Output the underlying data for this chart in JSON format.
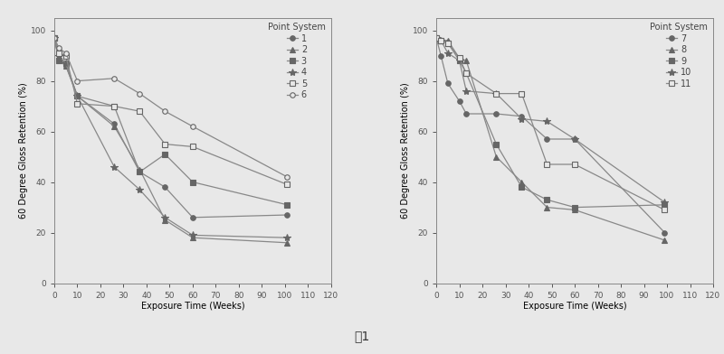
{
  "left_chart": {
    "title": "Point System",
    "series": [
      {
        "label": "1",
        "marker": "o",
        "markersize": 4,
        "fillstyle": "full",
        "x": [
          0,
          2,
          5,
          10,
          26,
          37,
          48,
          60,
          101
        ],
        "y": [
          97,
          88,
          86,
          74,
          63,
          44,
          38,
          26,
          27
        ]
      },
      {
        "label": "2",
        "marker": "^",
        "markersize": 4,
        "fillstyle": "full",
        "x": [
          0,
          2,
          5,
          10,
          26,
          37,
          48,
          60,
          101
        ],
        "y": [
          97,
          90,
          86,
          74,
          62,
          45,
          25,
          18,
          16
        ]
      },
      {
        "label": "3",
        "marker": "s",
        "markersize": 4,
        "fillstyle": "full",
        "x": [
          0,
          2,
          5,
          10,
          26,
          37,
          48,
          60,
          101
        ],
        "y": [
          97,
          88,
          87,
          74,
          70,
          44,
          51,
          40,
          31
        ]
      },
      {
        "label": "4",
        "marker": "*",
        "markersize": 6,
        "fillstyle": "full",
        "x": [
          0,
          2,
          5,
          10,
          26,
          37,
          48,
          60,
          101
        ],
        "y": [
          97,
          90,
          87,
          74,
          46,
          37,
          26,
          19,
          18
        ]
      },
      {
        "label": "5",
        "marker": "s",
        "markersize": 4,
        "fillstyle": "none",
        "x": [
          0,
          2,
          5,
          10,
          26,
          37,
          48,
          60,
          101
        ],
        "y": [
          97,
          91,
          90,
          71,
          70,
          68,
          55,
          54,
          39
        ]
      },
      {
        "label": "6",
        "marker": "o",
        "markersize": 4,
        "fillstyle": "none",
        "x": [
          0,
          2,
          5,
          10,
          26,
          37,
          48,
          60,
          101
        ],
        "y": [
          97,
          93,
          91,
          80,
          81,
          75,
          68,
          62,
          42
        ]
      }
    ],
    "xlabel": "Exposure Time (Weeks)",
    "ylabel": "60 Degree Gloss Retention (%)",
    "xlim": [
      0,
      120
    ],
    "ylim": [
      0,
      105
    ],
    "xticks": [
      0,
      10,
      20,
      30,
      40,
      50,
      60,
      70,
      80,
      90,
      100,
      110,
      120
    ],
    "yticks": [
      0,
      20,
      40,
      60,
      80,
      100
    ]
  },
  "right_chart": {
    "title": "Point System",
    "series": [
      {
        "label": "7",
        "marker": "o",
        "markersize": 4,
        "fillstyle": "full",
        "x": [
          0,
          2,
          5,
          10,
          13,
          26,
          37,
          48,
          60,
          99
        ],
        "y": [
          97,
          90,
          79,
          72,
          67,
          67,
          66,
          57,
          57,
          20
        ]
      },
      {
        "label": "8",
        "marker": "^",
        "markersize": 4,
        "fillstyle": "full",
        "x": [
          0,
          2,
          5,
          10,
          13,
          26,
          37,
          48,
          60,
          99
        ],
        "y": [
          97,
          96,
          96,
          89,
          88,
          50,
          40,
          30,
          29,
          17
        ]
      },
      {
        "label": "9",
        "marker": "s",
        "markersize": 4,
        "fillstyle": "full",
        "x": [
          0,
          2,
          5,
          10,
          13,
          26,
          37,
          48,
          60,
          99
        ],
        "y": [
          97,
          96,
          95,
          88,
          83,
          55,
          38,
          33,
          30,
          31
        ]
      },
      {
        "label": "10",
        "marker": "*",
        "markersize": 6,
        "fillstyle": "full",
        "x": [
          0,
          2,
          5,
          10,
          13,
          26,
          37,
          48,
          60,
          99
        ],
        "y": [
          97,
          96,
          91,
          88,
          76,
          75,
          65,
          64,
          57,
          32
        ]
      },
      {
        "label": "11",
        "marker": "s",
        "markersize": 4,
        "fillstyle": "none",
        "x": [
          0,
          2,
          5,
          10,
          13,
          26,
          37,
          48,
          60,
          99
        ],
        "y": [
          97,
          96,
          95,
          89,
          83,
          75,
          75,
          47,
          47,
          29
        ]
      }
    ],
    "xlabel": "Exposure Time (Weeks)",
    "ylabel": "60 Degree Gloss Retention (%)",
    "xlim": [
      0,
      120
    ],
    "ylim": [
      0,
      105
    ],
    "xticks": [
      0,
      10,
      20,
      30,
      40,
      50,
      60,
      70,
      80,
      90,
      100,
      110,
      120
    ],
    "yticks": [
      0,
      20,
      40,
      60,
      80,
      100
    ]
  },
  "caption": "图1",
  "line_color": "#888888",
  "marker_color": "#666666",
  "background_color": "#e8e8e8",
  "plot_bg_color": "#e8e8e8",
  "font_size": 7,
  "title_font_size": 7,
  "label_font_size": 7,
  "tick_font_size": 6.5
}
